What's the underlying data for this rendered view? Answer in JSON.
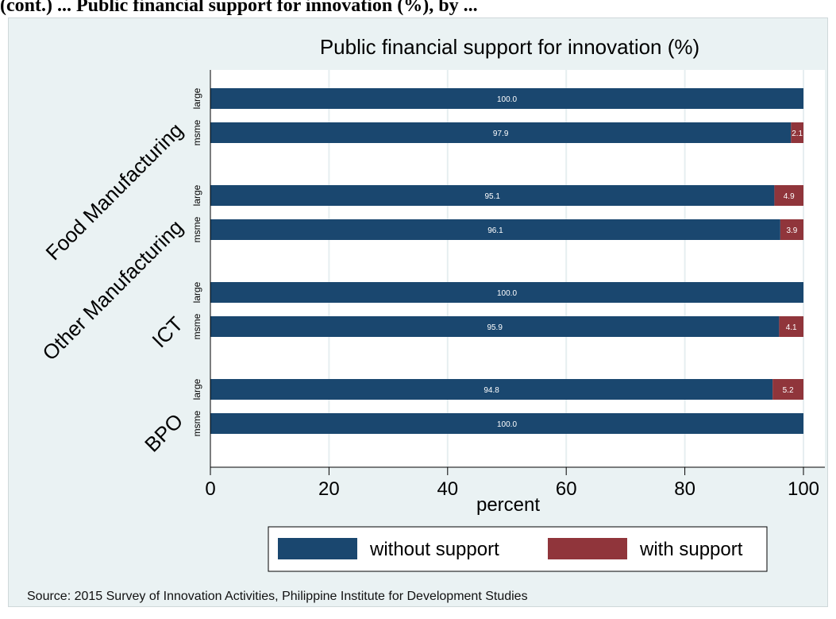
{
  "page_header": "(cont.) ... Public financial support for innovation (%), by ...",
  "source_note": "Source: 2015 Survey of Innovation Activities, Philippine Institute for Development Studies",
  "colors": {
    "without_support": "#1a476f",
    "with_support": "#90353b",
    "plot_bg": "#eaf2f3",
    "panel_bg": "#ffffff"
  },
  "chart_data": {
    "type": "bar",
    "orientation": "horizontal",
    "stacked": true,
    "title": "Public financial support for innovation (%)",
    "xlabel": "percent",
    "ylabel": "",
    "xlim": [
      0,
      100
    ],
    "x_ticks": [
      0,
      20,
      40,
      60,
      80,
      100
    ],
    "grid": true,
    "legend_position": "bottom",
    "groups": [
      {
        "name": "Food Manufacturing",
        "rows": [
          {
            "size": "large",
            "without": 100.0,
            "with": 0.0,
            "without_label": "100.0",
            "with_label": ""
          },
          {
            "size": "msme",
            "without": 97.9,
            "with": 2.1,
            "without_label": "97.9",
            "with_label": "2.1"
          }
        ]
      },
      {
        "name": "Other Manufacturing",
        "rows": [
          {
            "size": "large",
            "without": 95.1,
            "with": 4.9,
            "without_label": "95.1",
            "with_label": "4.9"
          },
          {
            "size": "msme",
            "without": 96.1,
            "with": 3.9,
            "without_label": "96.1",
            "with_label": "3.9"
          }
        ]
      },
      {
        "name": "ICT",
        "rows": [
          {
            "size": "large",
            "without": 100.0,
            "with": 0.0,
            "without_label": "100.0",
            "with_label": ""
          },
          {
            "size": "msme",
            "without": 95.9,
            "with": 4.1,
            "without_label": "95.9",
            "with_label": "4.1"
          }
        ]
      },
      {
        "name": "BPO",
        "rows": [
          {
            "size": "large",
            "without": 94.8,
            "with": 5.2,
            "without_label": "94.8",
            "with_label": "5.2"
          },
          {
            "size": "msme",
            "without": 100.0,
            "with": 0.0,
            "without_label": "100.0",
            "with_label": ""
          }
        ]
      }
    ],
    "series": [
      {
        "name": "without support",
        "key": "without"
      },
      {
        "name": "with support",
        "key": "with"
      }
    ]
  }
}
